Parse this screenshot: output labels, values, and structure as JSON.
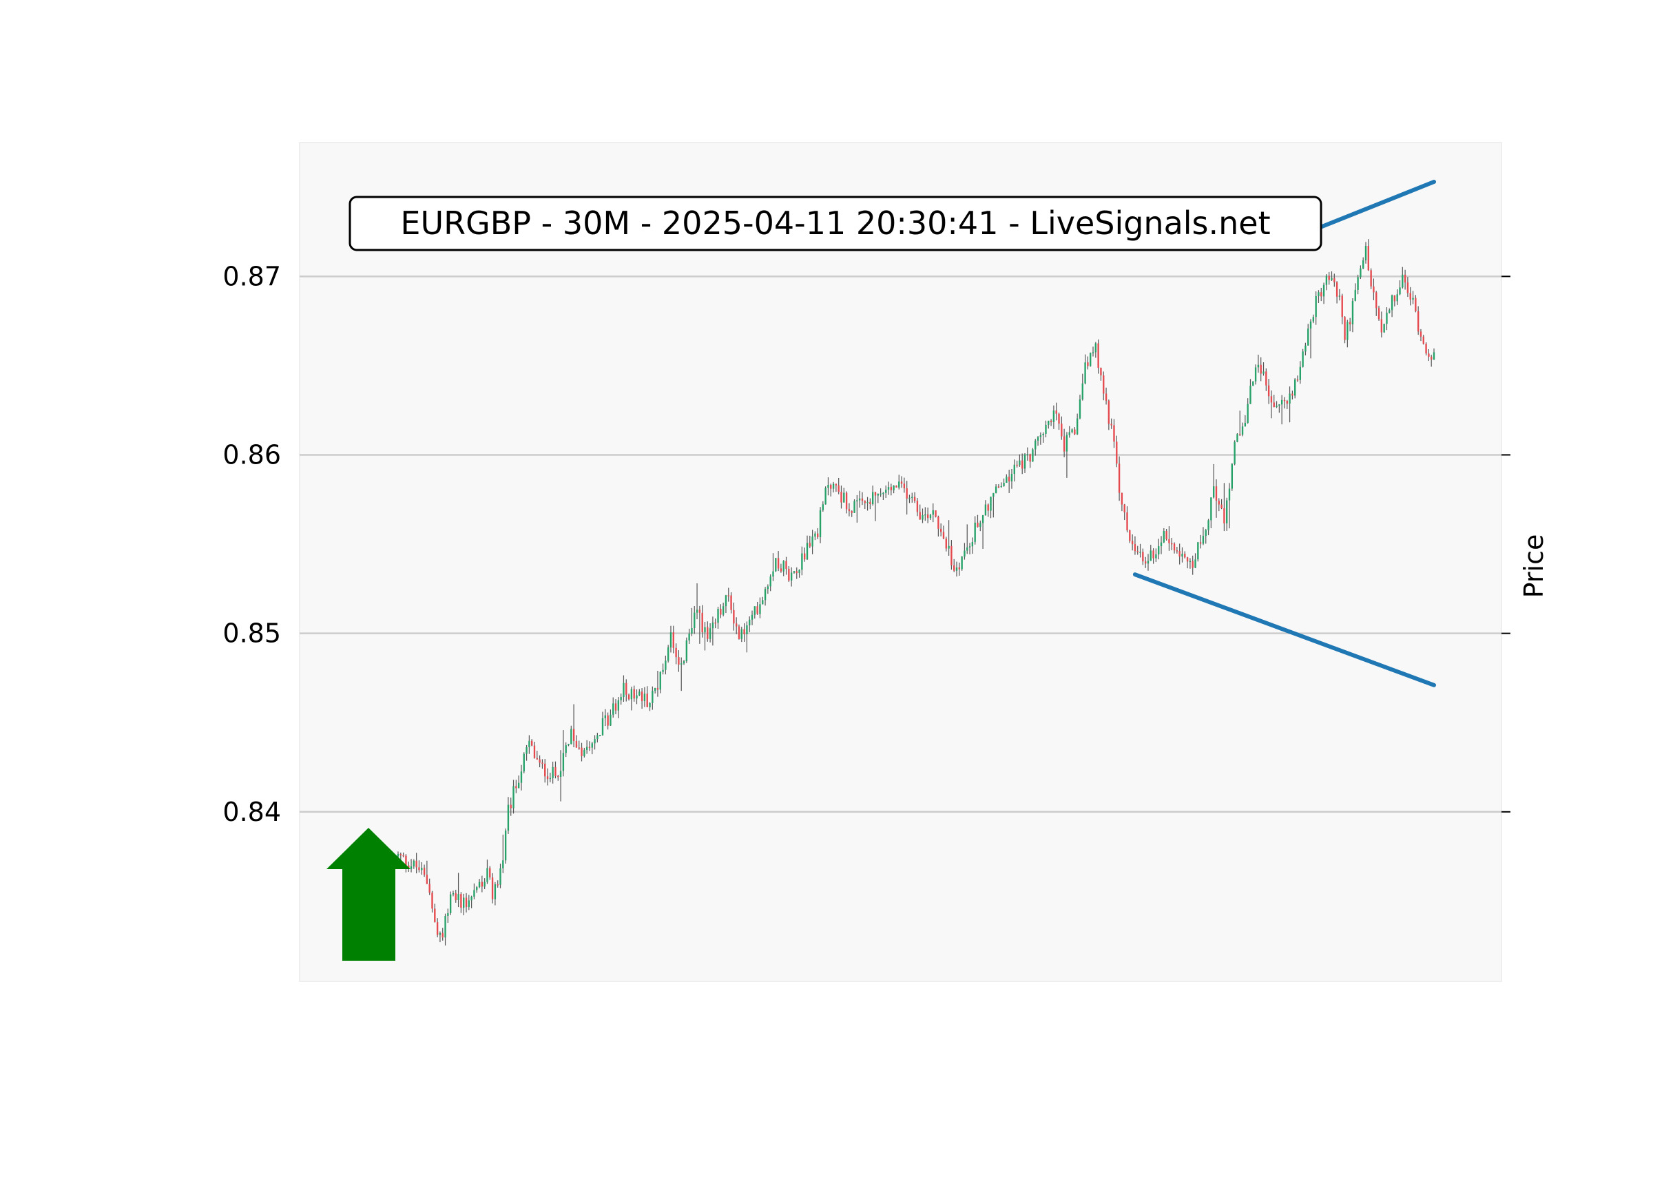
{
  "chart_data": {
    "type": "candlestick",
    "title": "EURGBP - 30M - 2025-04-11 20:30:41 - LiveSignals.net",
    "ylabel": "Price",
    "xlabel": "",
    "ylim": [
      0.8305,
      0.8775
    ],
    "yticks": [
      0.84,
      0.85,
      0.86,
      0.87
    ],
    "ytick_labels": [
      "0.84",
      "0.85",
      "0.86",
      "0.87"
    ],
    "grid": true,
    "colors": {
      "up": "#26a269",
      "down": "#e5484d",
      "wick": "#555555",
      "trendline": "#1f77b4",
      "signal": "#008000",
      "plot_bg": "#f8f8f8",
      "grid": "#cccccc"
    },
    "signal": {
      "direction": "up",
      "icon": "arrow-up-icon"
    },
    "n_candles": 300,
    "anchors": [
      [
        0,
        0.8375
      ],
      [
        8,
        0.8368
      ],
      [
        12,
        0.8358
      ],
      [
        14,
        0.8335
      ],
      [
        16,
        0.8328
      ],
      [
        20,
        0.8352
      ],
      [
        26,
        0.835
      ],
      [
        30,
        0.8358
      ],
      [
        34,
        0.8365
      ],
      [
        36,
        0.8353
      ],
      [
        40,
        0.8372
      ],
      [
        42,
        0.84
      ],
      [
        46,
        0.842
      ],
      [
        50,
        0.8438
      ],
      [
        54,
        0.8425
      ],
      [
        60,
        0.842
      ],
      [
        66,
        0.8442
      ],
      [
        70,
        0.8435
      ],
      [
        76,
        0.8445
      ],
      [
        80,
        0.8452
      ],
      [
        86,
        0.8468
      ],
      [
        92,
        0.8465
      ],
      [
        96,
        0.8462
      ],
      [
        100,
        0.8475
      ],
      [
        104,
        0.85
      ],
      [
        108,
        0.848
      ],
      [
        112,
        0.8505
      ],
      [
        114,
        0.8515
      ],
      [
        118,
        0.8495
      ],
      [
        122,
        0.851
      ],
      [
        126,
        0.852
      ],
      [
        130,
        0.8498
      ],
      [
        134,
        0.8505
      ],
      [
        140,
        0.8525
      ],
      [
        144,
        0.8542
      ],
      [
        150,
        0.8532
      ],
      [
        156,
        0.8548
      ],
      [
        160,
        0.8558
      ],
      [
        164,
        0.8585
      ],
      [
        168,
        0.858
      ],
      [
        172,
        0.857
      ],
      [
        178,
        0.8572
      ],
      [
        184,
        0.8578
      ],
      [
        190,
        0.8582
      ],
      [
        196,
        0.8578
      ],
      [
        200,
        0.8565
      ],
      [
        204,
        0.857
      ],
      [
        208,
        0.8555
      ],
      [
        212,
        0.8535
      ],
      [
        216,
        0.8545
      ],
      [
        222,
        0.8565
      ],
      [
        228,
        0.858
      ],
      [
        232,
        0.8585
      ],
      [
        236,
        0.8595
      ],
      [
        240,
        0.8598
      ],
      [
        246,
        0.8612
      ],
      [
        250,
        0.8625
      ],
      [
        254,
        0.8605
      ],
      [
        258,
        0.8612
      ],
      [
        262,
        0.8652
      ],
      [
        266,
        0.8658
      ],
      [
        268,
        0.8642
      ],
      [
        272,
        0.8615
      ],
      [
        276,
        0.857
      ],
      [
        280,
        0.8548
      ],
      [
        284,
        0.854
      ],
      [
        288,
        0.8545
      ],
      [
        292,
        0.8555
      ],
      [
        296,
        0.855
      ],
      [
        300,
        0.8545
      ]
    ],
    "anchors_b": [
      [
        0,
        0.8545
      ],
      [
        4,
        0.854
      ],
      [
        8,
        0.8555
      ],
      [
        12,
        0.858
      ],
      [
        16,
        0.8565
      ],
      [
        20,
        0.8605
      ],
      [
        24,
        0.862
      ],
      [
        28,
        0.865
      ],
      [
        32,
        0.864
      ],
      [
        36,
        0.8625
      ],
      [
        40,
        0.863
      ],
      [
        44,
        0.8645
      ],
      [
        48,
        0.867
      ],
      [
        52,
        0.869
      ],
      [
        56,
        0.87
      ],
      [
        60,
        0.8688
      ],
      [
        62,
        0.8665
      ],
      [
        66,
        0.869
      ],
      [
        70,
        0.8715
      ],
      [
        72,
        0.8695
      ],
      [
        76,
        0.8668
      ],
      [
        80,
        0.8685
      ],
      [
        84,
        0.8698
      ],
      [
        88,
        0.8685
      ],
      [
        92,
        0.8662
      ],
      [
        96,
        0.8655
      ]
    ],
    "trendlines": [
      {
        "name": "upper",
        "from": [
          0.8726
        ],
        "to": [
          0.8753
        ]
      },
      {
        "name": "lower",
        "from": [
          0.8533
        ],
        "to": [
          0.8471
        ]
      }
    ]
  }
}
